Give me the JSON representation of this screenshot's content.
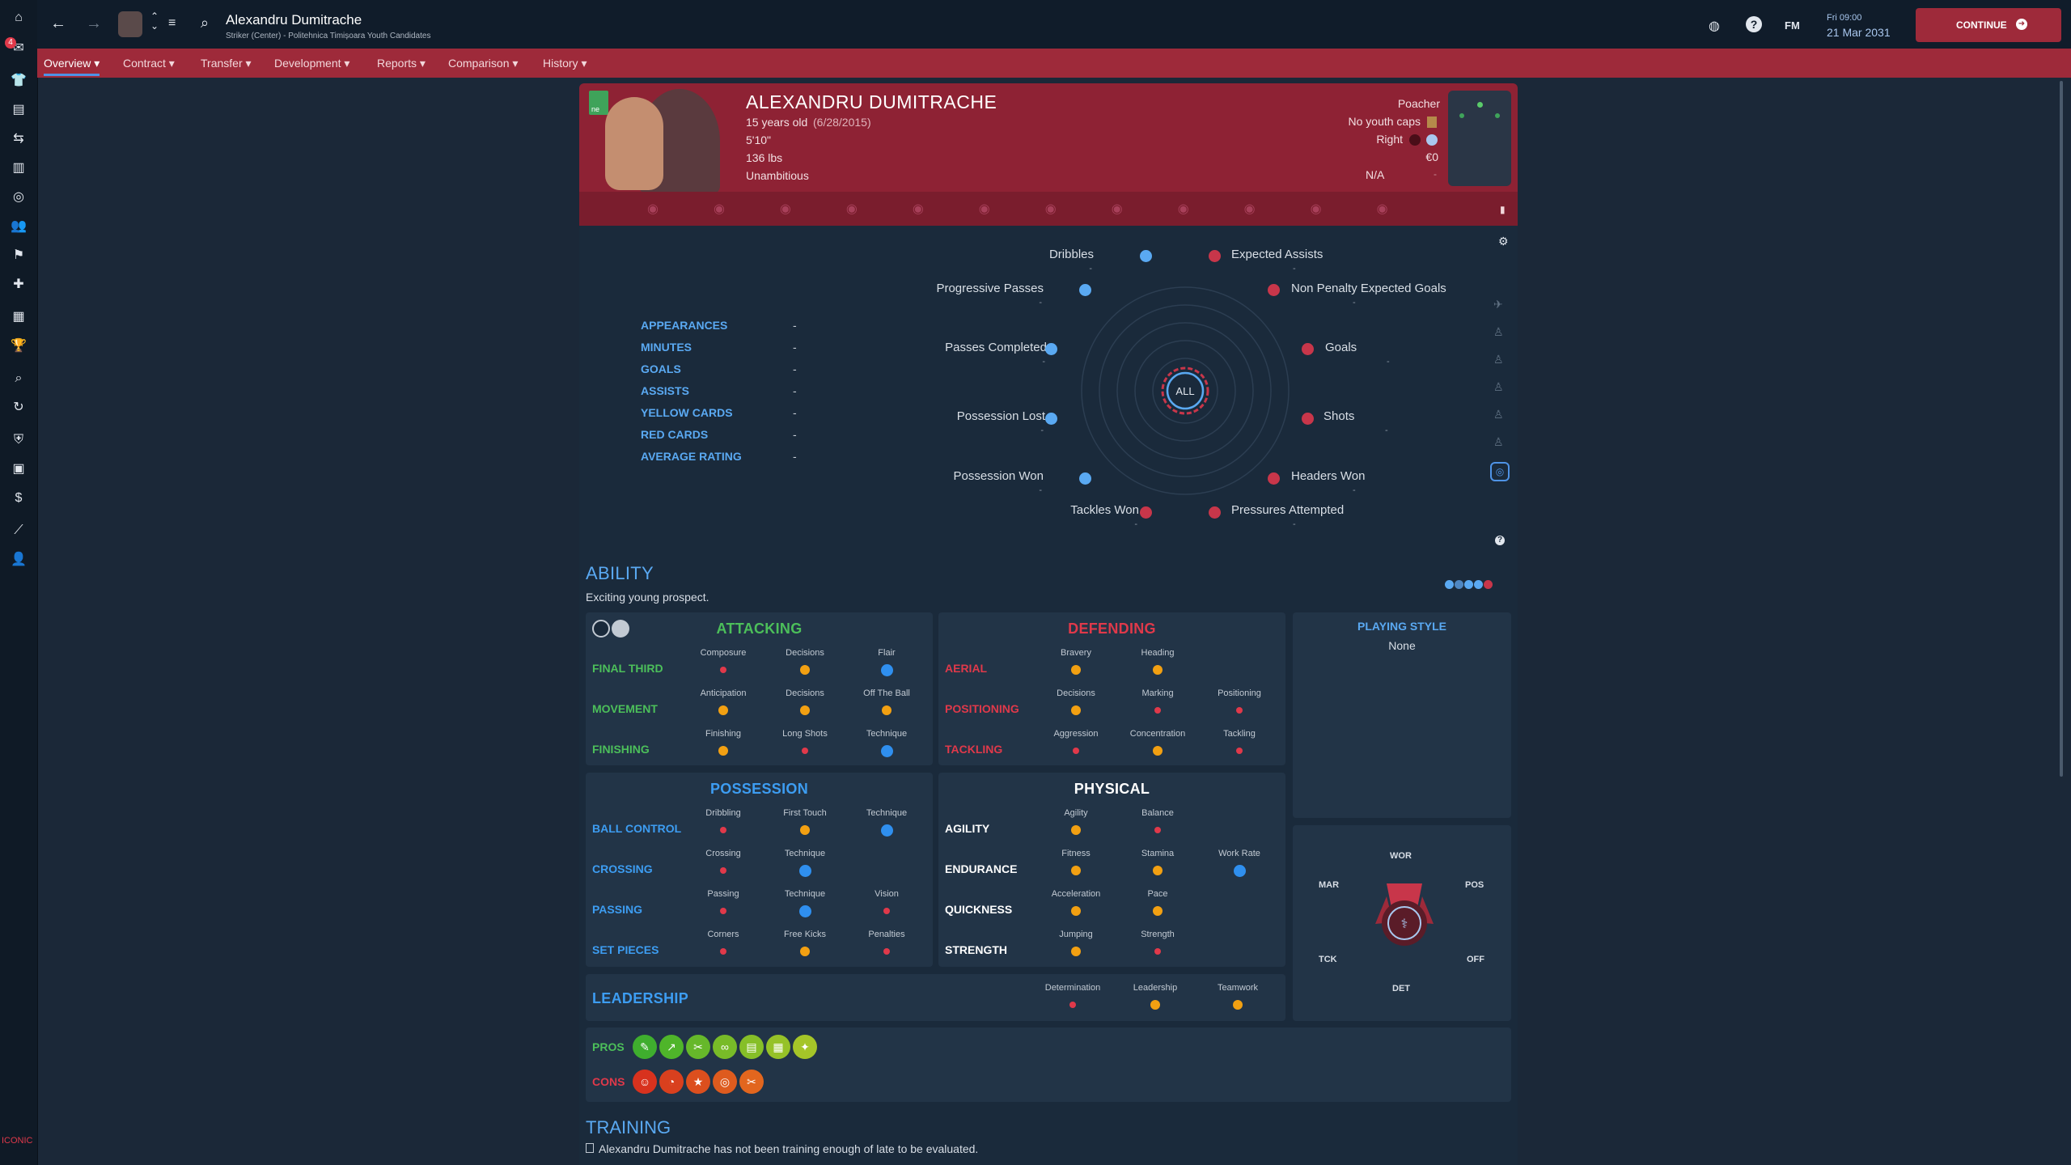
{
  "app": {
    "player_name": "Alexandru Dumitrache",
    "player_subtitle": "Striker (Center) - Politehnica Timișoara Youth Candidates",
    "datetime_day": "Fri 09:00",
    "datetime_date": "21 Mar 2031",
    "fm_label": "FM",
    "continue_label": "CONTINUE",
    "notification_count": "4",
    "bottom_logo": "ICONIC"
  },
  "nav_tabs": [
    "Overview",
    "Contract",
    "Transfer",
    "Development",
    "Reports",
    "Comparison",
    "History"
  ],
  "header": {
    "name": "ALEXANDRU DUMITRACHE",
    "age": "15 years old",
    "dob": "(6/28/2015)",
    "height": "5'10\"",
    "weight": "136 lbs",
    "personality": "Unambitious",
    "role": "Poacher",
    "caps": "No youth caps",
    "foot": "Right",
    "value": "€0",
    "wage": "N/A",
    "wage_extra": "-",
    "flag_text": "ne"
  },
  "stats": [
    {
      "label": "APPEARANCES",
      "value": "-"
    },
    {
      "label": "MINUTES",
      "value": "-"
    },
    {
      "label": "GOALS",
      "value": "-"
    },
    {
      "label": "ASSISTS",
      "value": "-"
    },
    {
      "label": "YELLOW CARDS",
      "value": "-"
    },
    {
      "label": "RED CARDS",
      "value": "-"
    },
    {
      "label": "AVERAGE RATING",
      "value": "-"
    }
  ],
  "radar": {
    "center_label": "ALL",
    "metrics": [
      {
        "label": "Dribbles",
        "value": "-",
        "color": "#5aa9f2"
      },
      {
        "label": "Expected Assists",
        "value": "-",
        "color": "#c8364a"
      },
      {
        "label": "Progressive Passes",
        "value": "-",
        "color": "#5aa9f2"
      },
      {
        "label": "Non Penalty Expected Goals",
        "value": "-",
        "color": "#c8364a"
      },
      {
        "label": "Passes Completed",
        "value": "-",
        "color": "#5aa9f2"
      },
      {
        "label": "Goals",
        "value": "-",
        "color": "#c8364a"
      },
      {
        "label": "Possession Lost",
        "value": "-",
        "color": "#5aa9f2"
      },
      {
        "label": "Shots",
        "value": "-",
        "color": "#c8364a"
      },
      {
        "label": "Possession Won",
        "value": "-",
        "color": "#5aa9f2"
      },
      {
        "label": "Headers Won",
        "value": "-",
        "color": "#c8364a"
      },
      {
        "label": "Tackles Won",
        "value": "-",
        "color": "#c8364a"
      },
      {
        "label": "Pressures Attempted",
        "value": "-",
        "color": "#c8364a"
      }
    ]
  },
  "ability": {
    "title": "ABILITY",
    "subtitle": "Exciting young prospect."
  },
  "attacking": {
    "title": "ATTACKING",
    "rows": [
      {
        "label": "FINAL THIRD",
        "attrs": [
          {
            "name": "Composure",
            "level": "red"
          },
          {
            "name": "Decisions",
            "level": "orange"
          },
          {
            "name": "Flair",
            "level": "blue"
          }
        ]
      },
      {
        "label": "MOVEMENT",
        "attrs": [
          {
            "name": "Anticipation",
            "level": "orange"
          },
          {
            "name": "Decisions",
            "level": "orange"
          },
          {
            "name": "Off The Ball",
            "level": "orange"
          }
        ]
      },
      {
        "label": "FINISHING",
        "attrs": [
          {
            "name": "Finishing",
            "level": "orange"
          },
          {
            "name": "Long Shots",
            "level": "red"
          },
          {
            "name": "Technique",
            "level": "blue"
          }
        ]
      }
    ]
  },
  "defending": {
    "title": "DEFENDING",
    "rows": [
      {
        "label": "AERIAL",
        "attrs": [
          {
            "name": "Bravery",
            "level": "orange"
          },
          {
            "name": "Heading",
            "level": "orange"
          }
        ]
      },
      {
        "label": "POSITIONING",
        "attrs": [
          {
            "name": "Decisions",
            "level": "orange"
          },
          {
            "name": "Marking",
            "level": "red"
          },
          {
            "name": "Positioning",
            "level": "red"
          }
        ]
      },
      {
        "label": "TACKLING",
        "attrs": [
          {
            "name": "Aggression",
            "level": "red"
          },
          {
            "name": "Concentration",
            "level": "orange"
          },
          {
            "name": "Tackling",
            "level": "red"
          }
        ]
      }
    ]
  },
  "possession": {
    "title": "POSSESSION",
    "rows": [
      {
        "label": "BALL CONTROL",
        "attrs": [
          {
            "name": "Dribbling",
            "level": "red"
          },
          {
            "name": "First Touch",
            "level": "orange"
          },
          {
            "name": "Technique",
            "level": "blue"
          }
        ]
      },
      {
        "label": "CROSSING",
        "attrs": [
          {
            "name": "Crossing",
            "level": "red"
          },
          {
            "name": "Technique",
            "level": "blue"
          }
        ]
      },
      {
        "label": "PASSING",
        "attrs": [
          {
            "name": "Passing",
            "level": "red"
          },
          {
            "name": "Technique",
            "level": "blue"
          },
          {
            "name": "Vision",
            "level": "red"
          }
        ]
      },
      {
        "label": "SET PIECES",
        "attrs": [
          {
            "name": "Corners",
            "level": "red"
          },
          {
            "name": "Free Kicks",
            "level": "orange"
          },
          {
            "name": "Penalties",
            "level": "red"
          }
        ]
      }
    ]
  },
  "physical": {
    "title": "PHYSICAL",
    "rows": [
      {
        "label": "AGILITY",
        "attrs": [
          {
            "name": "Agility",
            "level": "orange"
          },
          {
            "name": "Balance",
            "level": "red"
          }
        ]
      },
      {
        "label": "ENDURANCE",
        "attrs": [
          {
            "name": "Fitness",
            "level": "orange"
          },
          {
            "name": "Stamina",
            "level": "orange"
          },
          {
            "name": "Work Rate",
            "level": "blue"
          }
        ]
      },
      {
        "label": "QUICKNESS",
        "attrs": [
          {
            "name": "Acceleration",
            "level": "orange"
          },
          {
            "name": "Pace",
            "level": "orange"
          }
        ]
      },
      {
        "label": "STRENGTH",
        "attrs": [
          {
            "name": "Jumping",
            "level": "orange"
          },
          {
            "name": "Strength",
            "level": "red"
          }
        ]
      }
    ]
  },
  "leadership": {
    "title": "LEADERSHIP",
    "attrs": [
      {
        "name": "Determination",
        "level": "red"
      },
      {
        "name": "Leadership",
        "level": "orange"
      },
      {
        "name": "Teamwork",
        "level": "orange"
      }
    ]
  },
  "playing_style": {
    "title": "PLAYING STYLE",
    "value": "None"
  },
  "dna": {
    "wor": "WOR",
    "mar": "MAR",
    "pos": "POS",
    "tck": "TCK",
    "off": "OFF",
    "det": "DET"
  },
  "pros_label": "PROS",
  "cons_label": "CONS",
  "training": {
    "title": "TRAINING",
    "message": "Alexandru Dumitrache has not been training enough of late to be evaluated."
  },
  "colors": {
    "accent_red": "#9e2a3a",
    "attacking": "#4cbf5a",
    "defending": "#e0394a",
    "possession": "#3d9df2",
    "physical": "#ffffff"
  }
}
